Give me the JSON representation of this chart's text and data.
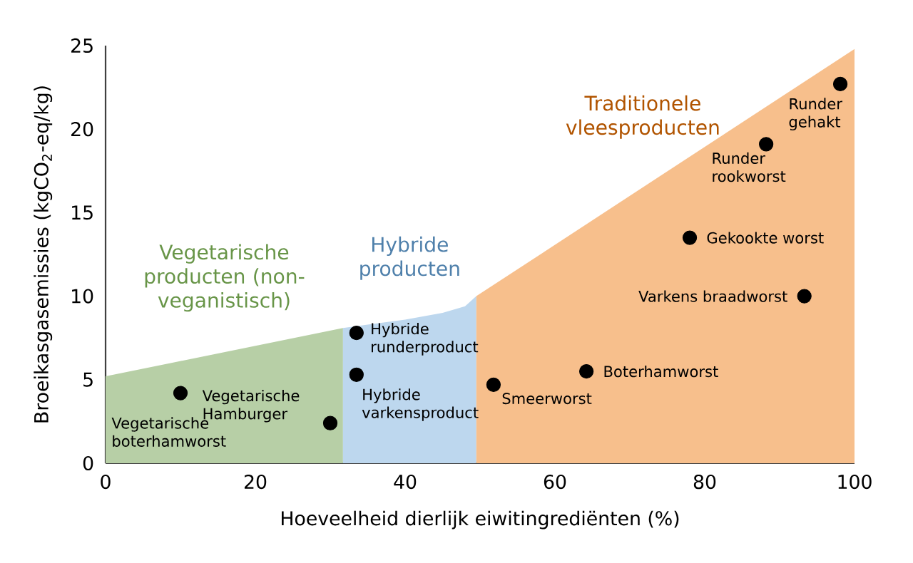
{
  "chart_data": {
    "type": "area",
    "xlabel": "Hoeveelheid dierlijk eiwitingrediënten (%)",
    "ylabel": "Broeikasgasemissies (kgCO$_{2}$-eq/kg)",
    "xlim": [
      0,
      100
    ],
    "ylim": [
      0,
      25
    ],
    "xticks": [
      0,
      20,
      40,
      60,
      80,
      100
    ],
    "yticks": [
      0,
      5,
      10,
      15,
      20,
      25
    ],
    "grid": false,
    "legend": false,
    "series": [
      {
        "name": "Vegetarische producten (non-veganistisch)",
        "color": "#b7cfa6",
        "x": [
          0,
          31.7
        ],
        "values": [
          5.2,
          8.1
        ]
      },
      {
        "name": "Hybride producten",
        "color": "#bdd7ee",
        "x": [
          31.7,
          40,
          45,
          48,
          49.5
        ],
        "values": [
          8.1,
          8.6,
          9.0,
          9.4,
          10.0
        ]
      },
      {
        "name": "Traditionele vleesproducten",
        "color": "#f7bf8c",
        "x": [
          49.5,
          100
        ],
        "values": [
          10.0,
          24.8
        ]
      },
      {
        "type": "scatter",
        "color": "#000000",
        "x": [
          10,
          30,
          33.5,
          33.5,
          51.8,
          64.2,
          78.0,
          93.3,
          88.2,
          98.1
        ],
        "values": [
          4.2,
          2.4,
          7.8,
          5.3,
          4.7,
          5.5,
          13.5,
          10.0,
          19.1,
          22.7
        ]
      }
    ],
    "annotations": [
      {
        "text": "Vegetarische boterhamworst",
        "x": 10,
        "y": 4.2
      },
      {
        "text": "Vegetarische Hamburger",
        "x": 30,
        "y": 2.4
      },
      {
        "text": "Hybride runderproduct",
        "x": 33.5,
        "y": 7.8
      },
      {
        "text": "Hybride varkensproduct",
        "x": 33.5,
        "y": 5.3
      },
      {
        "text": "Smeerworst",
        "x": 51.8,
        "y": 4.7
      },
      {
        "text": "Boterhamworst",
        "x": 64.2,
        "y": 5.5
      },
      {
        "text": "Gekookte worst",
        "x": 78.0,
        "y": 13.5
      },
      {
        "text": "Varkens braadworst",
        "x": 93.3,
        "y": 10.0
      },
      {
        "text": "Runder rookworst",
        "x": 88.2,
        "y": 19.1
      },
      {
        "text": "Runder gehakt",
        "x": 98.1,
        "y": 22.7
      }
    ]
  }
}
